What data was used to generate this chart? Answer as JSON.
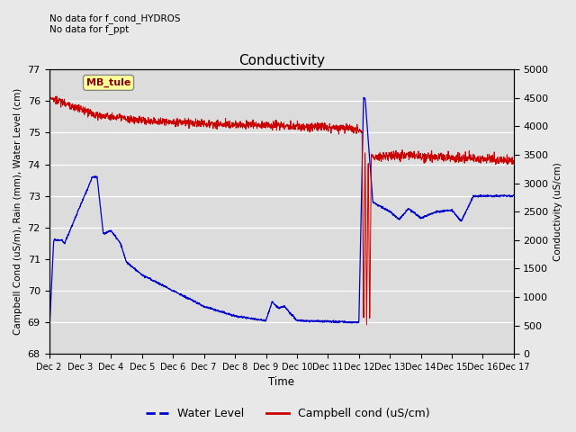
{
  "title": "Conductivity",
  "left_ylabel": "Campbell Cond (uS/m), Rain (mm), Water Level (cm)",
  "right_ylabel": "Conductivity (uS/cm)",
  "xlabel": "Time",
  "top_left_text": "No data for f_cond_HYDROS\nNo data for f_ppt",
  "legend_box_label": "MB_tule",
  "ylim_left": [
    68.0,
    77.0
  ],
  "ylim_right": [
    0,
    5000
  ],
  "yticks_left": [
    68.0,
    69.0,
    70.0,
    71.0,
    72.0,
    73.0,
    74.0,
    75.0,
    76.0,
    77.0
  ],
  "yticks_right": [
    0,
    500,
    1000,
    1500,
    2000,
    2500,
    3000,
    3500,
    4000,
    4500,
    5000
  ],
  "xtick_labels": [
    "Dec 2",
    "Dec 3",
    "Dec 4",
    "Dec 5",
    "Dec 6",
    "Dec 7",
    "Dec 8",
    "Dec 9",
    "Dec 10",
    "Dec 11",
    "Dec 12",
    "Dec 13",
    "Dec 14",
    "Dec 15",
    "Dec 16",
    "Dec 17"
  ],
  "fig_bg_color": "#e8e8e8",
  "plot_bg_color": "#dcdcdc",
  "water_level_color": "#0000cc",
  "campbell_cond_color": "#cc0000",
  "legend_water_label": "Water Level",
  "legend_campbell_label": "Campbell cond (uS/cm)"
}
